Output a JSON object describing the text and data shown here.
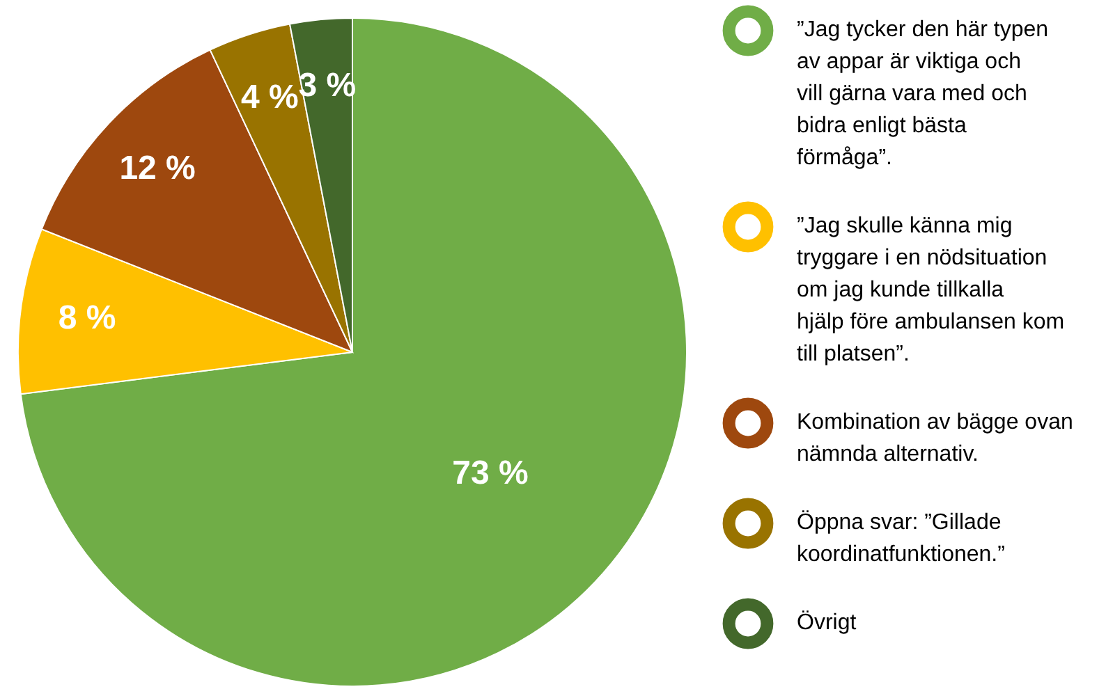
{
  "chart_data": {
    "type": "pie",
    "categories": [
      "”Jag tycker den här typen av appar är viktiga och vill gärna vara med och bidra enligt bästa förmåga”.",
      "”Jag skulle känna mig tryggare i en nödsituation om jag kunde tillkalla hjälp före ambulansen kom till platsen”.",
      "Kombination av bägge ovan nämnda alternativ.",
      "Öppna svar: ”Gillade koordinatfunktionen.”",
      "Övrigt"
    ],
    "values": [
      73,
      8,
      12,
      4,
      3
    ],
    "colors": [
      "#70ad47",
      "#ffc000",
      "#9e480e",
      "#997300",
      "#43682b"
    ],
    "value_labels": [
      "73 %",
      "8 %",
      "12 %",
      "4 %",
      "3 %"
    ],
    "legend": "right"
  }
}
